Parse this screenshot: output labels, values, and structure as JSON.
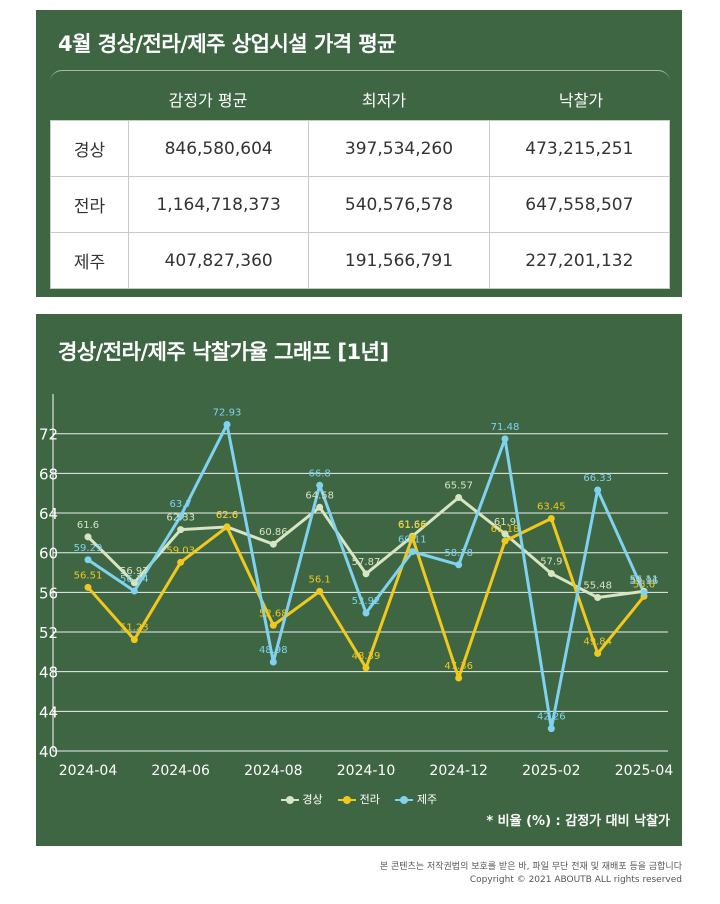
{
  "summary": {
    "title": "4월 경상/전라/제주 상업시설 가격 평균",
    "columns": [
      "감정가 평균",
      "최저가",
      "낙찰가"
    ],
    "rows": [
      {
        "region": "경상",
        "values": [
          "846,580,604",
          "397,534,260",
          "473,215,251"
        ]
      },
      {
        "region": "전라",
        "values": [
          "1,164,718,373",
          "540,576,578",
          "647,558,507"
        ]
      },
      {
        "region": "제주",
        "values": [
          "407,827,360",
          "191,566,791",
          "227,201,132"
        ]
      }
    ]
  },
  "chart_panel": {
    "title": "경상/전라/제주 낙찰가율 그래프 [1년]",
    "note": "* 비율 (%) : 감정가 대비 낙찰가"
  },
  "footer": {
    "notice": "본 콘텐츠는 저작권법의 보호를 받은 바, 파일 무단 전재 및 재배포 등을 금합니다",
    "copyright": "Copyright © 2021 ABOUTB ALL rights reserved"
  },
  "chart_data": {
    "type": "line",
    "x": [
      "2024-04",
      "2024-05",
      "2024-06",
      "2024-07",
      "2024-08",
      "2024-09",
      "2024-10",
      "2024-11",
      "2024-12",
      "2025-01",
      "2025-02",
      "2025-03",
      "2025-04"
    ],
    "x_tick_labels": [
      "2024-04",
      "2024-06",
      "2024-08",
      "2024-10",
      "2024-12",
      "2025-02",
      "2025-04"
    ],
    "y_ticks": [
      40,
      44,
      48,
      52,
      56,
      60,
      64,
      68,
      72
    ],
    "ylim": [
      40,
      75
    ],
    "grid": "horizontal",
    "legend": "bottom-center",
    "series": [
      {
        "name": "경상",
        "color": "#d8e4c2",
        "values": [
          61.6,
          56.97,
          62.33,
          62.6,
          60.86,
          64.58,
          57.87,
          61.66,
          65.57,
          61.9,
          57.9,
          55.48,
          56.11
        ]
      },
      {
        "name": "전라",
        "color": "#f0c81e",
        "values": [
          56.51,
          51.23,
          59.03,
          62.6,
          52.68,
          56.1,
          48.39,
          61.56,
          47.36,
          61.18,
          63.45,
          49.84,
          55.6
        ]
      },
      {
        "name": "제주",
        "color": "#7fd3f0",
        "values": [
          59.29,
          56.14,
          63.7,
          72.93,
          48.98,
          66.8,
          53.92,
          60.11,
          58.78,
          71.48,
          42.26,
          66.33,
          55.96
        ]
      }
    ]
  }
}
